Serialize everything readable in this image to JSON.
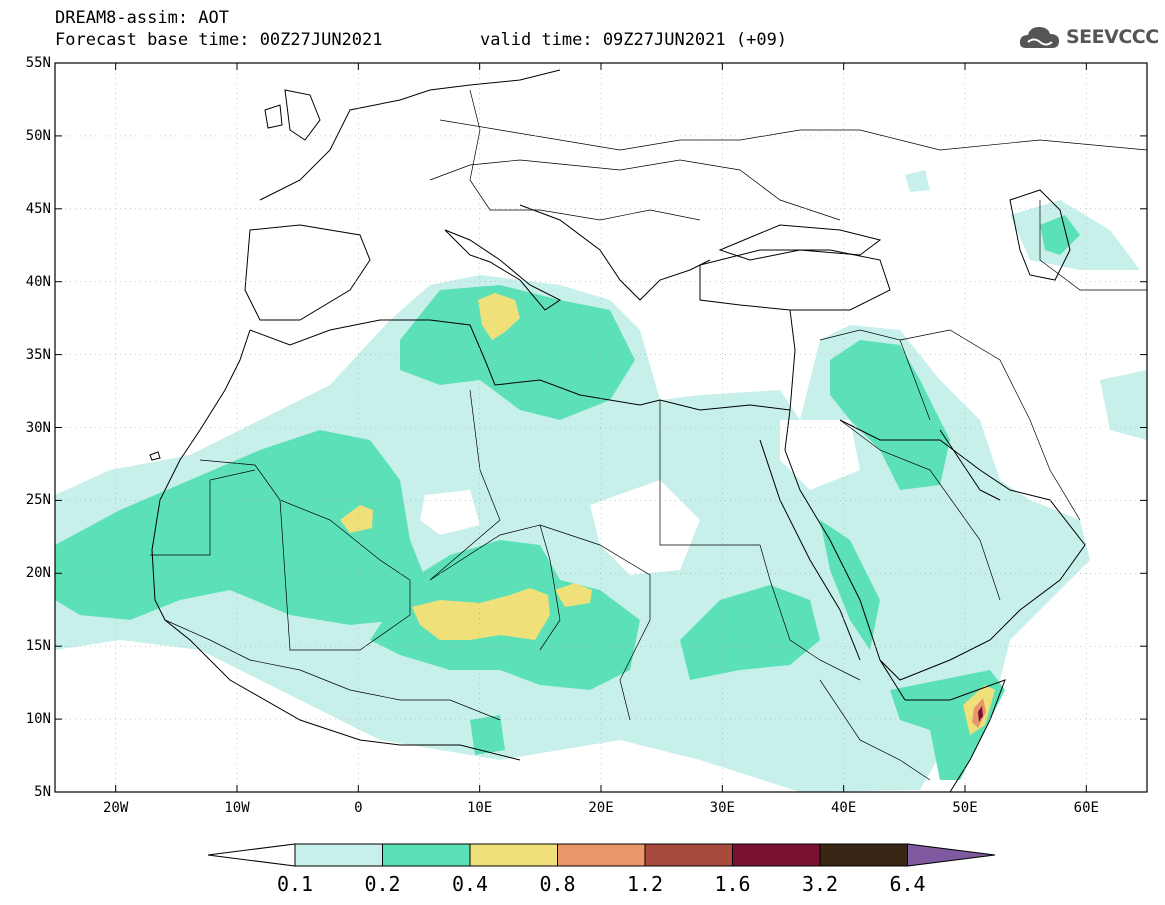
{
  "header": {
    "line1": "DREAM8-assim: AOT",
    "line2": "Forecast base time: 00Z27JUN2021",
    "line3": "valid time: 09Z27JUN2021 (+09)"
  },
  "logo": {
    "text": "SEEVCCC",
    "icon": "cloud-logo-icon"
  },
  "map": {
    "lat_labels": [
      "55N",
      "50N",
      "45N",
      "40N",
      "35N",
      "30N",
      "25N",
      "20N",
      "15N",
      "10N",
      "5N"
    ],
    "lon_labels": [
      "20W",
      "10W",
      "0",
      "10E",
      "20E",
      "30E",
      "40E",
      "50E",
      "60E"
    ],
    "lon_range": [
      -25,
      65
    ],
    "lat_range": [
      5,
      55
    ]
  },
  "legend": {
    "labels": [
      "0.1",
      "0.2",
      "0.4",
      "0.8",
      "1.2",
      "1.6",
      "3.2",
      "6.4"
    ],
    "colors": [
      "#ffffff",
      "#c8f0ea",
      "#5ce0b8",
      "#f0e07a",
      "#e8966a",
      "#a84b3c",
      "#7a1030",
      "#3a2414",
      "#7f5aa0"
    ]
  }
}
